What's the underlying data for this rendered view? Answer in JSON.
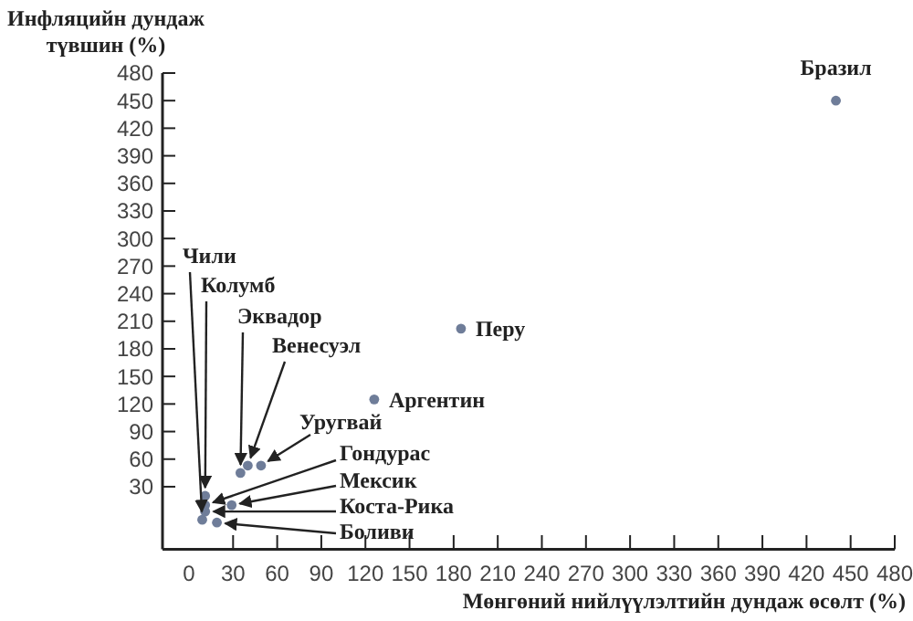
{
  "chart_data": {
    "type": "scatter",
    "xlabel": "Мөнгөний нийлүүлэлтийн дундаж өсөлт (%)",
    "ylabel": "Инфляцийн дундаж түвшин (%)",
    "xlim": [
      -18,
      480
    ],
    "ylim": [
      -38,
      480
    ],
    "xticks": [
      0,
      30,
      60,
      90,
      120,
      150,
      180,
      210,
      240,
      270,
      300,
      330,
      360,
      390,
      420,
      450,
      480
    ],
    "yticks": [
      30,
      60,
      90,
      120,
      150,
      180,
      210,
      240,
      270,
      300,
      330,
      360,
      390,
      420,
      450,
      480
    ],
    "grid": false,
    "marker": "circle",
    "series": [
      {
        "color": "#6f7d99",
        "x": [
          9,
          11,
          35,
          40,
          49,
          11,
          29,
          11,
          19,
          126,
          185,
          440
        ],
        "values": [
          -6,
          20,
          45,
          53,
          53,
          10,
          10,
          3,
          -9,
          125,
          202,
          450
        ]
      }
    ],
    "annotations": [
      {
        "text": "Чили",
        "x": 9,
        "y": -6
      },
      {
        "text": "Колумб",
        "x": 11,
        "y": 20
      },
      {
        "text": "Эквадор",
        "x": 35,
        "y": 45
      },
      {
        "text": "Венесуэл",
        "x": 40,
        "y": 53
      },
      {
        "text": "Уругвай",
        "x": 49,
        "y": 53
      },
      {
        "text": "Гондурас",
        "x": 11,
        "y": 10
      },
      {
        "text": "Мексик",
        "x": 29,
        "y": 10
      },
      {
        "text": "Коста-Рика",
        "x": 11,
        "y": 3
      },
      {
        "text": "Боливи",
        "x": 19,
        "y": -9
      },
      {
        "text": "Аргентин",
        "x": 126,
        "y": 125
      },
      {
        "text": "Перу",
        "x": 185,
        "y": 202
      },
      {
        "text": "Бразил",
        "x": 440,
        "y": 450
      }
    ]
  }
}
